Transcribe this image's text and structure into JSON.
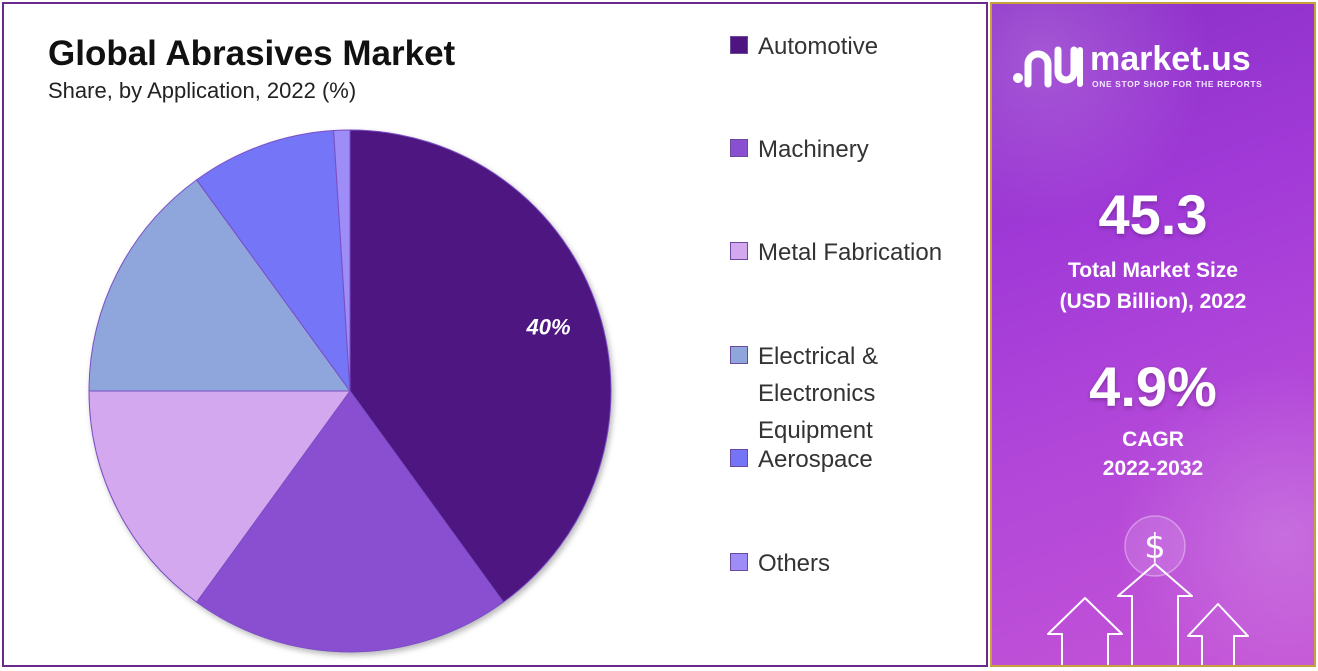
{
  "chart_data": {
    "type": "pie",
    "title": "Global Abrasives Market",
    "subtitle": "Share, by Application, 2022 (%)",
    "categories": [
      "Automotive",
      "Machinery",
      "Metal Fabrication",
      "Electrical & Electronics Equipment",
      "Aerospace",
      "Others"
    ],
    "values": [
      40,
      20,
      15,
      15,
      9,
      1
    ],
    "colors": [
      "#4e1580",
      "#8a4fd1",
      "#d4a8ef",
      "#8fa6dc",
      "#7474f7",
      "#9e8df6"
    ],
    "data_labels": [
      {
        "category": "Automotive",
        "text": "40%"
      }
    ],
    "start_angle_deg": 0,
    "direction": "clockwise",
    "legend": {
      "position": "right",
      "entries": [
        "Automotive",
        "Machinery",
        "Metal Fabrication",
        "Electrical & Electronics Equipment",
        "Aerospace",
        "Others"
      ]
    }
  },
  "legend_lines": [
    [
      "Automotive"
    ],
    [
      "Machinery"
    ],
    [
      "Metal Fabrication"
    ],
    [
      "Electrical &",
      "Electronics",
      "Equipment"
    ],
    [
      "Aerospace"
    ],
    [
      "Others"
    ]
  ],
  "info_panel": {
    "brand_name": "market.us",
    "brand_tagline": "ONE STOP SHOP FOR THE REPORTS",
    "market_size_value": "45.3",
    "market_size_label_line1": "Total Market Size",
    "market_size_label_line2": "(USD Billion), 2022",
    "cagr_value": "4.9%",
    "cagr_label_line1": "CAGR",
    "cagr_label_line2": "2022-2032",
    "icon": "dollar-sign",
    "background_colors": [
      "#8a2fc7",
      "#c454d6"
    ],
    "border_color": "#c9a13b"
  }
}
